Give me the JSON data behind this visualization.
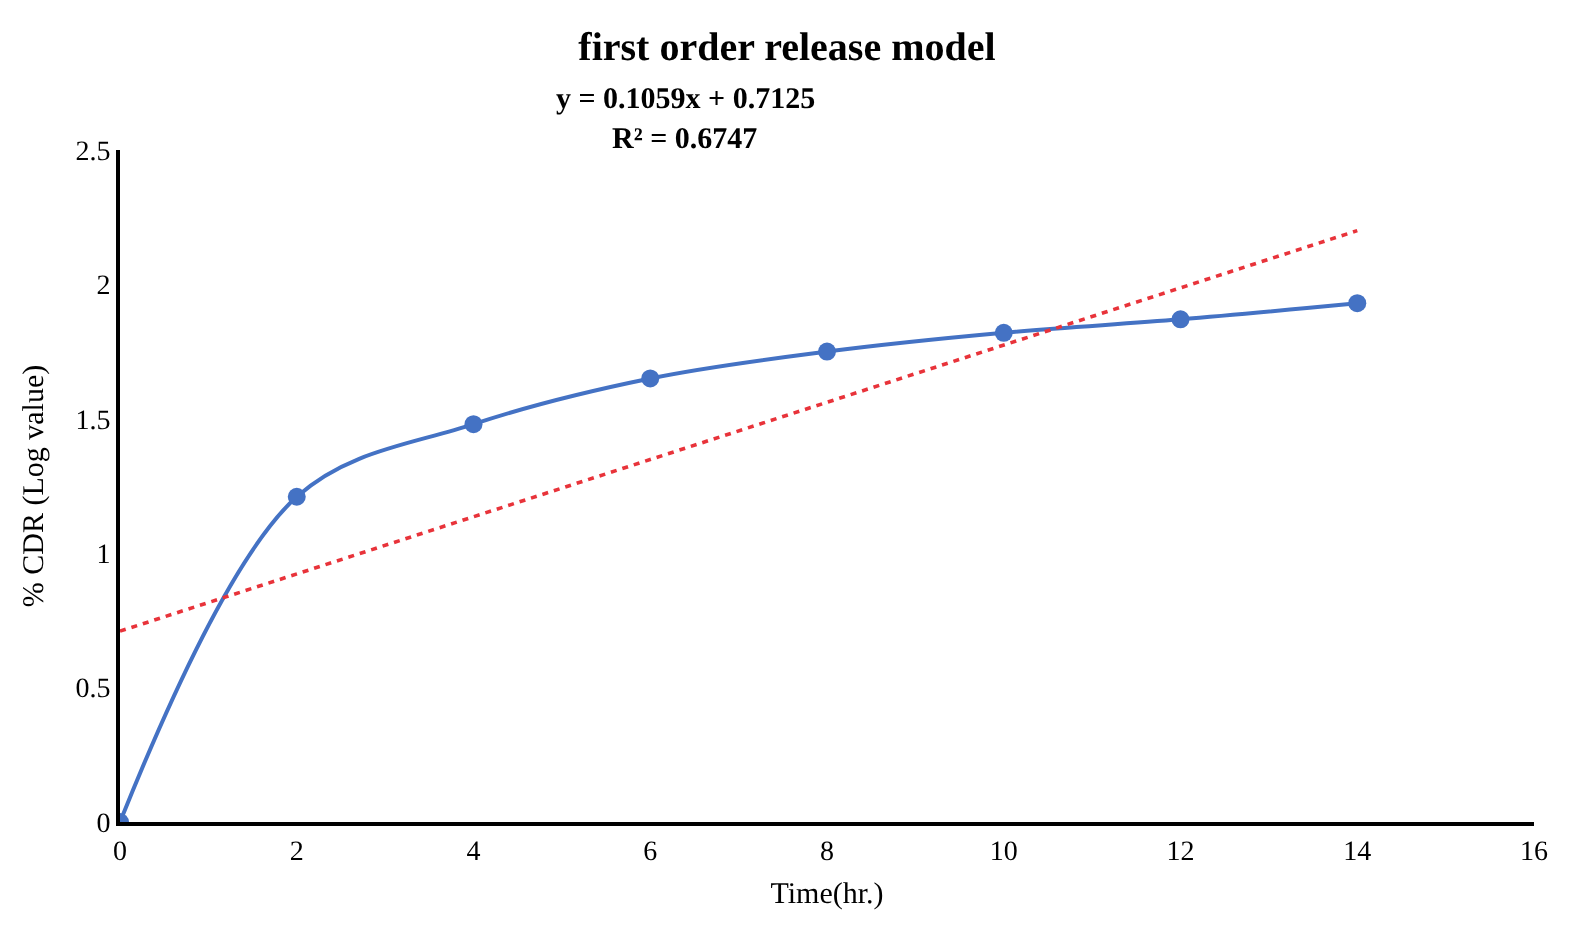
{
  "chart_data": {
    "type": "line",
    "title": "first order release model",
    "xlabel": "Time(hr.)",
    "ylabel": "% CDR (Log value)",
    "x": [
      0,
      2,
      4,
      6,
      8,
      10,
      12,
      14
    ],
    "series": [
      {
        "color": "#4472c4",
        "values": [
          0,
          1.21,
          1.48,
          1.65,
          1.75,
          1.82,
          1.87,
          1.93
        ],
        "marker": "circle",
        "line_style": "solid"
      },
      {
        "type": "line",
        "color": "#e8333a",
        "x": [
          0,
          14
        ],
        "values": [
          0.71,
          2.2
        ],
        "marker": "none",
        "line_style": "dotted"
      }
    ],
    "annotations": [
      "y = 0.1059x + 0.7125",
      "R² = 0.6747"
    ],
    "xlim": [
      0,
      16
    ],
    "xticks": [
      0,
      2,
      4,
      6,
      8,
      10,
      12,
      14,
      16
    ],
    "ylim": [
      0,
      2.5
    ],
    "yticks": [
      0,
      0.5,
      1,
      1.5,
      2,
      2.5
    ]
  }
}
